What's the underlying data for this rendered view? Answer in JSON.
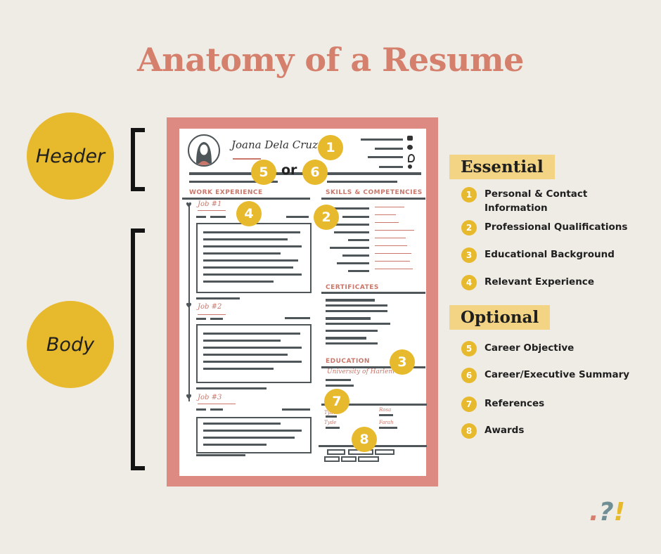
{
  "title": "Anatomy of a Resume",
  "side_labels": {
    "header": "Header",
    "body": "Body"
  },
  "resume": {
    "name": "Joana Dela Cruz",
    "or_text": "or",
    "sections": {
      "work": "WORK EXPERIENCE",
      "skills": "SKILLS & COMPETENCIES",
      "certificates": "CERTIFICATES",
      "education": "EDUCATION"
    },
    "jobs": [
      "Job #1",
      "Job #2",
      "Job #3"
    ],
    "education_school": "University of Harlem",
    "reference_names": [
      "Tyde",
      "Rosa"
    ],
    "reference_names_2": [
      "Tyde",
      "Farah"
    ],
    "markers": [
      "1",
      "2",
      "3",
      "4",
      "5",
      "6",
      "7",
      "8"
    ]
  },
  "legend": {
    "essential_title": "Essential",
    "optional_title": "Optional",
    "essential": [
      {
        "num": "1",
        "label": "Personal & Contact Information"
      },
      {
        "num": "2",
        "label": "Professional Qualifications"
      },
      {
        "num": "3",
        "label": "Educational Background"
      },
      {
        "num": "4",
        "label": "Relevant Experience"
      }
    ],
    "optional": [
      {
        "num": "5",
        "label": "Career Objective"
      },
      {
        "num": "6",
        "label": "Career/Executive Summary"
      },
      {
        "num": "7",
        "label": "References"
      },
      {
        "num": "8",
        "label": "Awards"
      }
    ]
  },
  "logo": {
    "dot": ".",
    "q": "?",
    "bang": "!"
  },
  "colors": {
    "background": "#efebe5",
    "accent": "#d4806c",
    "gold": "#e7b92c",
    "frame": "#dd8b82"
  }
}
